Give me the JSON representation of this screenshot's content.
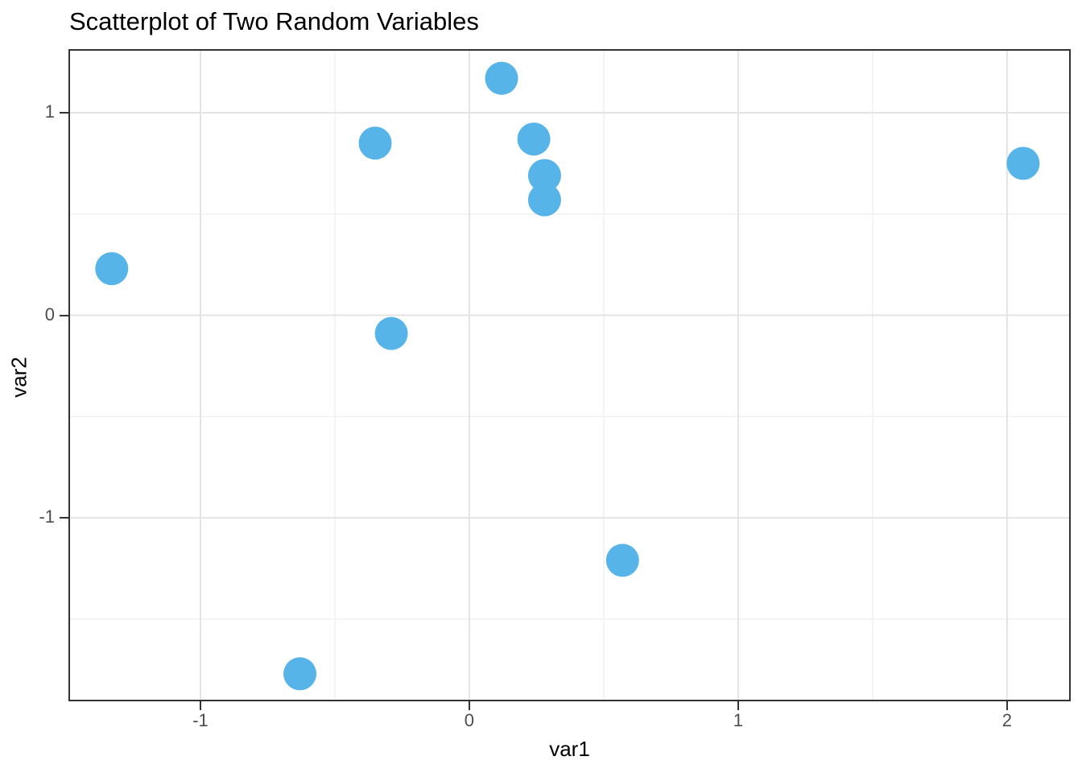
{
  "title": "Scatterplot of Two Random Variables",
  "chart_data": {
    "type": "scatter",
    "title": "Scatterplot of Two Random Variables",
    "xlabel": "var1",
    "ylabel": "var2",
    "xlim": [
      -1.491,
      2.237
    ],
    "ylim": [
      -1.906,
      1.314
    ],
    "x_major_ticks": [
      -1,
      0,
      1,
      2
    ],
    "x_tick_labels": [
      "-1",
      "0",
      "1",
      "2"
    ],
    "x_minor_ticks": [
      -0.5,
      0.5,
      1.5
    ],
    "y_major_ticks": [
      -1,
      0,
      1
    ],
    "y_tick_labels": [
      "-1",
      "0",
      "1"
    ],
    "y_minor_ticks": [
      -1.5,
      -0.5,
      0.5
    ],
    "grid": "major and minor, no legend",
    "points": [
      {
        "x": -1.33,
        "y": 0.23
      },
      {
        "x": -0.63,
        "y": -1.77
      },
      {
        "x": -0.35,
        "y": 0.85
      },
      {
        "x": -0.29,
        "y": -0.09
      },
      {
        "x": 0.12,
        "y": 1.17
      },
      {
        "x": 0.24,
        "y": 0.87
      },
      {
        "x": 0.28,
        "y": 0.57
      },
      {
        "x": 0.28,
        "y": 0.69
      },
      {
        "x": 0.57,
        "y": -1.21
      },
      {
        "x": 2.06,
        "y": 0.75
      }
    ],
    "point_color": "#56B4E9",
    "point_radius_px": 20.5
  },
  "colors": {
    "background": "#FFFFFF",
    "panel_border": "#333333",
    "grid_major": "#E4E4E4",
    "grid_minor": "#F1F1F1",
    "tick_mark": "#333333",
    "tick_label": "#4D4D4D",
    "text": "#000000"
  }
}
